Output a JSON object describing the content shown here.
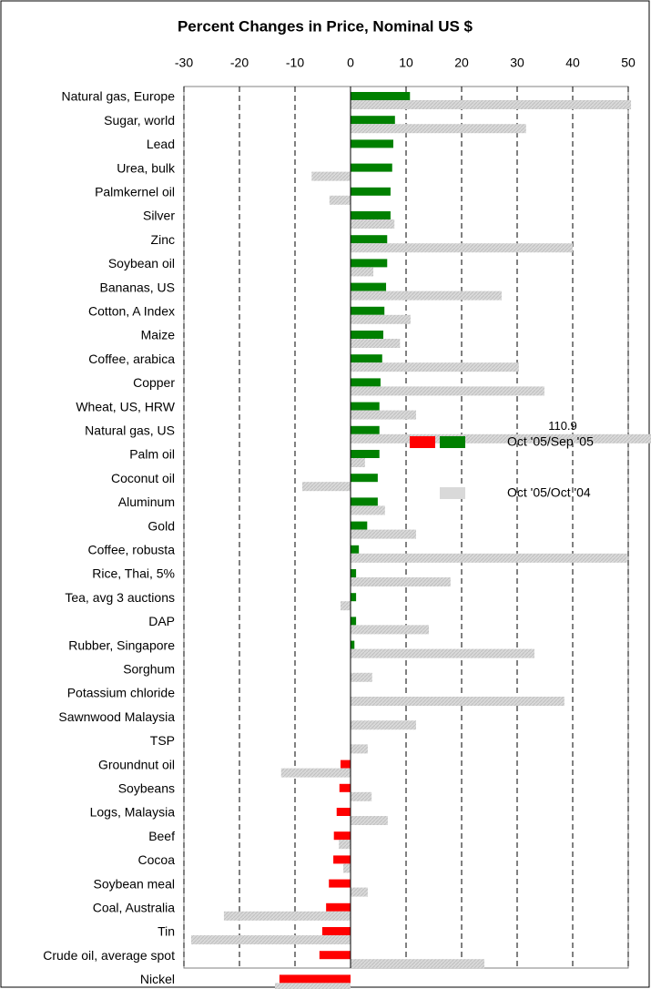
{
  "chart_data": {
    "type": "hbar",
    "title": "Percent Changes in Price, Nominal US $",
    "categories": [
      "Natural gas, Europe",
      "Sugar, world",
      "Lead",
      "Urea, bulk",
      "Palmkernel oil",
      "Silver",
      "Zinc",
      "Soybean oil",
      "Bananas, US",
      "Cotton, A Index",
      "Maize",
      "Coffee, arabica",
      "Copper",
      "Wheat, US, HRW",
      "Natural gas, US",
      "Palm oil",
      "Coconut oil",
      "Aluminum",
      "Gold",
      "Coffee,  robusta",
      "Rice, Thai, 5%",
      "Tea, avg 3 auctions",
      "DAP",
      "Rubber, Singapore",
      "Sorghum",
      "Potassium chloride",
      "Sawnwood Malaysia",
      "TSP",
      "Groundnut oil",
      "Soybeans",
      "Logs, Malaysia",
      "Beef",
      "Cocoa",
      "Soybean meal",
      "Coal, Australia",
      "Tin",
      "Crude oil, average spot",
      "Nickel"
    ],
    "series": [
      {
        "name": "Oct '05/Sep '05",
        "color": "#008000",
        "negative_color": "#ff0000",
        "values": [
          10.7,
          8.0,
          7.7,
          7.5,
          7.2,
          7.2,
          6.6,
          6.6,
          6.4,
          6.1,
          5.9,
          5.7,
          5.4,
          5.2,
          5.2,
          5.2,
          4.9,
          4.9,
          3.0,
          1.5,
          1.0,
          1.0,
          1.0,
          0.7,
          null,
          null,
          null,
          null,
          -1.8,
          -2.0,
          -2.5,
          -3.0,
          -3.1,
          -3.9,
          -4.4,
          -5.1,
          -5.6,
          -12.8
        ]
      },
      {
        "name": "Oct '05/Oct '04",
        "color": "#d9d9d9",
        "values": [
          50.5,
          31.6,
          null,
          -7.0,
          -3.8,
          7.9,
          40.0,
          4.1,
          27.2,
          10.8,
          8.9,
          30.3,
          34.9,
          11.8,
          110.9,
          2.6,
          -8.7,
          6.2,
          11.8,
          49.8,
          18.0,
          -1.8,
          14.1,
          33.1,
          3.9,
          38.5,
          11.8,
          3.1,
          -12.5,
          3.8,
          6.7,
          -2.1,
          -1.3,
          3.1,
          -22.8,
          -28.7,
          24.1,
          -13.6
        ],
        "value_labels": [
          null,
          null,
          null,
          null,
          null,
          null,
          null,
          null,
          null,
          null,
          null,
          null,
          null,
          null,
          "110.9",
          null,
          null,
          null,
          null,
          null,
          null,
          null,
          null,
          null,
          null,
          null,
          null,
          null,
          null,
          null,
          null,
          null,
          null,
          null,
          null,
          null,
          null,
          null
        ]
      }
    ],
    "xlim": [
      -30,
      50
    ],
    "xticks": [
      -30,
      -20,
      -10,
      0,
      10,
      20,
      30,
      40,
      50
    ],
    "grid": true
  }
}
